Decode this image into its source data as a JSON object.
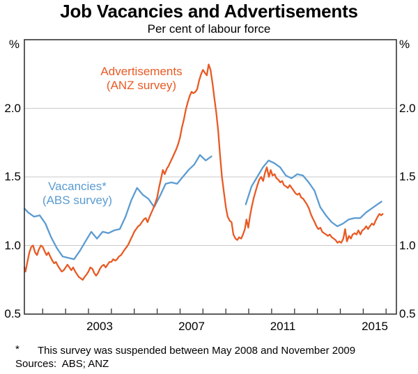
{
  "footnote": {
    "marker": "*",
    "text": "This survey was suspended between May 2008 and November 2009"
  },
  "sources": "Sources:  ABS; ANZ",
  "legend": {
    "advertisements_line1": "Advertisements",
    "advertisements_line2": "(ANZ survey)",
    "vacancies_line1": "Vacancies*",
    "vacancies_line2": "(ABS survey)"
  },
  "colors": {
    "advertisements": "#E85A24",
    "vacancies": "#5B9BD1",
    "grid": "#C9C9C9",
    "frame": "#333333"
  },
  "chart_data": {
    "type": "line",
    "title": "Job Vacancies and Advertisements",
    "subtitle": "Per cent of labour force",
    "x_axis": {
      "range": [
        2000.2,
        2016.45
      ],
      "year_ticks_from": 2001,
      "year_ticks_to": 2016,
      "labeled_years": [
        2003,
        2007,
        2011,
        2015
      ],
      "labels_centered_on_mid_year": true
    },
    "y_axis": {
      "unit": "%",
      "range": [
        0.5,
        2.5
      ],
      "ticks": [
        0.5,
        1.0,
        1.5,
        2.0
      ],
      "grid": true,
      "sides": "both"
    },
    "series": [
      {
        "name": "Vacancies (ABS survey)",
        "color": "#5B9BD1",
        "frequency": "quarterly",
        "note": "suspended between May 2008 and November 2009",
        "segments": [
          [
            [
              2000.2,
              1.27
            ],
            [
              2000.37,
              1.24
            ],
            [
              2000.62,
              1.21
            ],
            [
              2000.87,
              1.22
            ],
            [
              2001.12,
              1.16
            ],
            [
              2001.37,
              1.06
            ],
            [
              2001.62,
              0.98
            ],
            [
              2001.87,
              0.92
            ],
            [
              2002.12,
              0.91
            ],
            [
              2002.37,
              0.9
            ],
            [
              2002.62,
              0.96
            ],
            [
              2002.87,
              1.03
            ],
            [
              2003.12,
              1.1
            ],
            [
              2003.37,
              1.05
            ],
            [
              2003.62,
              1.1
            ],
            [
              2003.87,
              1.09
            ],
            [
              2004.12,
              1.11
            ],
            [
              2004.37,
              1.12
            ],
            [
              2004.62,
              1.21
            ],
            [
              2004.87,
              1.33
            ],
            [
              2005.12,
              1.42
            ],
            [
              2005.37,
              1.37
            ],
            [
              2005.62,
              1.34
            ],
            [
              2005.87,
              1.28
            ],
            [
              2006.12,
              1.36
            ],
            [
              2006.37,
              1.45
            ],
            [
              2006.62,
              1.46
            ],
            [
              2006.87,
              1.45
            ],
            [
              2007.12,
              1.5
            ],
            [
              2007.37,
              1.55
            ],
            [
              2007.62,
              1.59
            ],
            [
              2007.87,
              1.66
            ],
            [
              2008.12,
              1.62
            ],
            [
              2008.37,
              1.65
            ]
          ],
          [
            [
              2009.87,
              1.3
            ],
            [
              2010.12,
              1.43
            ],
            [
              2010.37,
              1.5
            ],
            [
              2010.62,
              1.57
            ],
            [
              2010.87,
              1.62
            ],
            [
              2011.12,
              1.6
            ],
            [
              2011.37,
              1.57
            ],
            [
              2011.62,
              1.51
            ],
            [
              2011.87,
              1.49
            ],
            [
              2012.12,
              1.52
            ],
            [
              2012.37,
              1.51
            ],
            [
              2012.62,
              1.46
            ],
            [
              2012.87,
              1.4
            ],
            [
              2013.12,
              1.28
            ],
            [
              2013.37,
              1.22
            ],
            [
              2013.62,
              1.17
            ],
            [
              2013.87,
              1.14
            ],
            [
              2014.12,
              1.16
            ],
            [
              2014.37,
              1.19
            ],
            [
              2014.62,
              1.2
            ],
            [
              2014.87,
              1.2
            ],
            [
              2015.12,
              1.24
            ],
            [
              2015.37,
              1.27
            ],
            [
              2015.62,
              1.3
            ],
            [
              2015.8,
              1.32
            ]
          ]
        ]
      },
      {
        "name": "Advertisements (ANZ survey)",
        "color": "#E85A24",
        "frequency": "monthly",
        "segments": [
          [
            [
              2000.2,
              0.84
            ],
            [
              2000.25,
              0.81
            ],
            [
              2000.33,
              0.88
            ],
            [
              2000.42,
              0.95
            ],
            [
              2000.5,
              0.99
            ],
            [
              2000.58,
              1.0
            ],
            [
              2000.67,
              0.95
            ],
            [
              2000.75,
              0.93
            ],
            [
              2000.83,
              0.97
            ],
            [
              2000.92,
              1.0
            ],
            [
              2001.0,
              0.99
            ],
            [
              2001.08,
              0.96
            ],
            [
              2001.17,
              0.93
            ],
            [
              2001.25,
              0.95
            ],
            [
              2001.33,
              0.92
            ],
            [
              2001.42,
              0.89
            ],
            [
              2001.5,
              0.87
            ],
            [
              2001.58,
              0.88
            ],
            [
              2001.67,
              0.85
            ],
            [
              2001.75,
              0.83
            ],
            [
              2001.83,
              0.81
            ],
            [
              2001.92,
              0.82
            ],
            [
              2002.0,
              0.84
            ],
            [
              2002.08,
              0.86
            ],
            [
              2002.17,
              0.84
            ],
            [
              2002.25,
              0.82
            ],
            [
              2002.33,
              0.84
            ],
            [
              2002.42,
              0.81
            ],
            [
              2002.5,
              0.79
            ],
            [
              2002.58,
              0.77
            ],
            [
              2002.67,
              0.76
            ],
            [
              2002.75,
              0.75
            ],
            [
              2002.83,
              0.77
            ],
            [
              2002.92,
              0.79
            ],
            [
              2003.0,
              0.81
            ],
            [
              2003.08,
              0.84
            ],
            [
              2003.17,
              0.83
            ],
            [
              2003.25,
              0.8
            ],
            [
              2003.33,
              0.78
            ],
            [
              2003.42,
              0.8
            ],
            [
              2003.5,
              0.83
            ],
            [
              2003.58,
              0.85
            ],
            [
              2003.67,
              0.86
            ],
            [
              2003.75,
              0.84
            ],
            [
              2003.83,
              0.86
            ],
            [
              2003.92,
              0.88
            ],
            [
              2004.0,
              0.88
            ],
            [
              2004.08,
              0.9
            ],
            [
              2004.17,
              0.89
            ],
            [
              2004.25,
              0.9
            ],
            [
              2004.33,
              0.92
            ],
            [
              2004.42,
              0.93
            ],
            [
              2004.5,
              0.95
            ],
            [
              2004.58,
              0.97
            ],
            [
              2004.67,
              0.99
            ],
            [
              2004.75,
              1.01
            ],
            [
              2004.83,
              1.04
            ],
            [
              2004.92,
              1.07
            ],
            [
              2005.0,
              1.1
            ],
            [
              2005.08,
              1.12
            ],
            [
              2005.17,
              1.14
            ],
            [
              2005.25,
              1.15
            ],
            [
              2005.33,
              1.17
            ],
            [
              2005.42,
              1.19
            ],
            [
              2005.5,
              1.2
            ],
            [
              2005.58,
              1.17
            ],
            [
              2005.67,
              1.21
            ],
            [
              2005.75,
              1.24
            ],
            [
              2005.83,
              1.27
            ],
            [
              2005.92,
              1.31
            ],
            [
              2006.0,
              1.35
            ],
            [
              2006.08,
              1.42
            ],
            [
              2006.17,
              1.49
            ],
            [
              2006.25,
              1.55
            ],
            [
              2006.33,
              1.52
            ],
            [
              2006.42,
              1.56
            ],
            [
              2006.5,
              1.58
            ],
            [
              2006.58,
              1.61
            ],
            [
              2006.67,
              1.64
            ],
            [
              2006.75,
              1.67
            ],
            [
              2006.83,
              1.7
            ],
            [
              2006.92,
              1.74
            ],
            [
              2007.0,
              1.79
            ],
            [
              2007.08,
              1.86
            ],
            [
              2007.17,
              1.92
            ],
            [
              2007.25,
              1.99
            ],
            [
              2007.33,
              2.04
            ],
            [
              2007.42,
              2.09
            ],
            [
              2007.5,
              2.12
            ],
            [
              2007.58,
              2.11
            ],
            [
              2007.67,
              2.12
            ],
            [
              2007.75,
              2.14
            ],
            [
              2007.83,
              2.2
            ],
            [
              2007.92,
              2.25
            ],
            [
              2008.0,
              2.28
            ],
            [
              2008.08,
              2.26
            ],
            [
              2008.17,
              2.24
            ],
            [
              2008.25,
              2.32
            ],
            [
              2008.33,
              2.28
            ],
            [
              2008.42,
              2.18
            ],
            [
              2008.5,
              2.07
            ],
            [
              2008.58,
              1.97
            ],
            [
              2008.67,
              1.83
            ],
            [
              2008.75,
              1.65
            ],
            [
              2008.83,
              1.5
            ],
            [
              2008.92,
              1.38
            ],
            [
              2009.0,
              1.28
            ],
            [
              2009.08,
              1.21
            ],
            [
              2009.17,
              1.18
            ],
            [
              2009.25,
              1.17
            ],
            [
              2009.33,
              1.08
            ],
            [
              2009.42,
              1.05
            ],
            [
              2009.5,
              1.04
            ],
            [
              2009.58,
              1.06
            ],
            [
              2009.67,
              1.05
            ],
            [
              2009.75,
              1.08
            ],
            [
              2009.83,
              1.12
            ],
            [
              2009.9,
              1.19
            ],
            [
              2009.98,
              1.13
            ],
            [
              2010.06,
              1.22
            ],
            [
              2010.13,
              1.28
            ],
            [
              2010.21,
              1.34
            ],
            [
              2010.29,
              1.39
            ],
            [
              2010.38,
              1.44
            ],
            [
              2010.46,
              1.48
            ],
            [
              2010.54,
              1.5
            ],
            [
              2010.63,
              1.47
            ],
            [
              2010.71,
              1.53
            ],
            [
              2010.79,
              1.57
            ],
            [
              2010.88,
              1.5
            ],
            [
              2010.96,
              1.55
            ],
            [
              2011.04,
              1.51
            ],
            [
              2011.13,
              1.52
            ],
            [
              2011.21,
              1.49
            ],
            [
              2011.29,
              1.48
            ],
            [
              2011.38,
              1.46
            ],
            [
              2011.46,
              1.47
            ],
            [
              2011.54,
              1.44
            ],
            [
              2011.63,
              1.43
            ],
            [
              2011.71,
              1.42
            ],
            [
              2011.79,
              1.44
            ],
            [
              2011.88,
              1.42
            ],
            [
              2011.96,
              1.4
            ],
            [
              2012.04,
              1.38
            ],
            [
              2012.13,
              1.37
            ],
            [
              2012.21,
              1.38
            ],
            [
              2012.29,
              1.35
            ],
            [
              2012.38,
              1.34
            ],
            [
              2012.46,
              1.32
            ],
            [
              2012.54,
              1.3
            ],
            [
              2012.63,
              1.27
            ],
            [
              2012.71,
              1.23
            ],
            [
              2012.79,
              1.2
            ],
            [
              2012.88,
              1.17
            ],
            [
              2012.96,
              1.14
            ],
            [
              2013.04,
              1.12
            ],
            [
              2013.13,
              1.13
            ],
            [
              2013.21,
              1.1
            ],
            [
              2013.29,
              1.09
            ],
            [
              2013.38,
              1.08
            ],
            [
              2013.46,
              1.07
            ],
            [
              2013.54,
              1.08
            ],
            [
              2013.63,
              1.06
            ],
            [
              2013.71,
              1.05
            ],
            [
              2013.79,
              1.04
            ],
            [
              2013.88,
              1.02
            ],
            [
              2013.96,
              1.03
            ],
            [
              2014.04,
              1.02
            ],
            [
              2014.13,
              1.05
            ],
            [
              2014.21,
              1.12
            ],
            [
              2014.29,
              1.03
            ],
            [
              2014.38,
              1.07
            ],
            [
              2014.46,
              1.05
            ],
            [
              2014.54,
              1.08
            ],
            [
              2014.63,
              1.09
            ],
            [
              2014.71,
              1.08
            ],
            [
              2014.79,
              1.11
            ],
            [
              2014.88,
              1.08
            ],
            [
              2014.96,
              1.11
            ],
            [
              2015.04,
              1.12
            ],
            [
              2015.13,
              1.14
            ],
            [
              2015.21,
              1.12
            ],
            [
              2015.29,
              1.14
            ],
            [
              2015.38,
              1.16
            ],
            [
              2015.46,
              1.15
            ],
            [
              2015.54,
              1.18
            ],
            [
              2015.63,
              1.21
            ],
            [
              2015.71,
              1.23
            ],
            [
              2015.79,
              1.22
            ],
            [
              2015.85,
              1.23
            ]
          ]
        ]
      }
    ]
  }
}
